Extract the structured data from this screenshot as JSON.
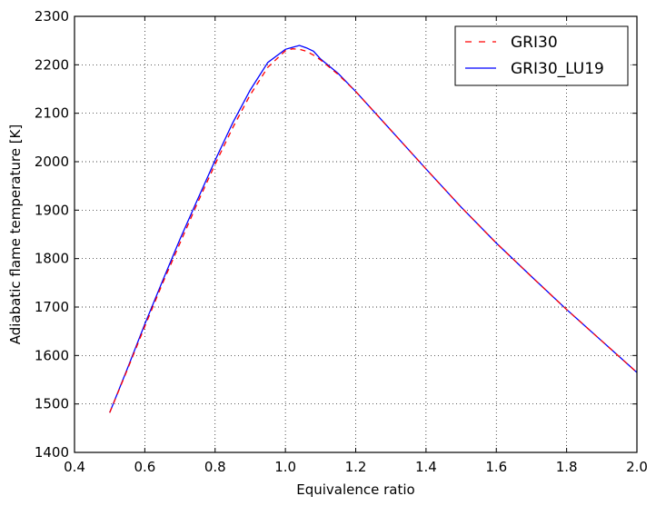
{
  "chart_data": {
    "type": "line",
    "xlabel": "Equivalence ratio",
    "ylabel": "Adiabatic flame temperature [K]",
    "xlim": [
      0.4,
      2.0
    ],
    "ylim": [
      1400,
      2300
    ],
    "xticks": [
      "0.4",
      "0.6",
      "0.8",
      "1.0",
      "1.2",
      "1.4",
      "1.6",
      "1.8",
      "2.0"
    ],
    "yticks": [
      "1400",
      "1500",
      "1600",
      "1700",
      "1800",
      "1900",
      "2000",
      "2100",
      "2200",
      "2300"
    ],
    "grid": true,
    "legend_position": "top-right",
    "series": [
      {
        "name": "GRI30",
        "color": "#ff0000",
        "style": "dashed",
        "x": [
          0.5,
          0.55,
          0.6,
          0.65,
          0.7,
          0.75,
          0.8,
          0.85,
          0.9,
          0.95,
          1.0,
          1.02,
          1.04,
          1.06,
          1.08,
          1.1,
          1.15,
          1.2,
          1.3,
          1.4,
          1.5,
          1.6,
          1.7,
          1.8,
          1.9,
          2.0
        ],
        "y": [
          1482,
          1570,
          1660,
          1748,
          1832,
          1915,
          1995,
          2070,
          2138,
          2195,
          2229,
          2233,
          2232,
          2228,
          2220,
          2210,
          2180,
          2145,
          2065,
          1985,
          1906,
          1832,
          1763,
          1695,
          1630,
          1565
        ]
      },
      {
        "name": "GRI30_LU19",
        "color": "#0000ff",
        "style": "solid",
        "x": [
          0.5,
          0.55,
          0.6,
          0.65,
          0.7,
          0.75,
          0.8,
          0.85,
          0.9,
          0.95,
          1.0,
          1.02,
          1.04,
          1.06,
          1.08,
          1.1,
          1.15,
          1.2,
          1.3,
          1.4,
          1.5,
          1.6,
          1.7,
          1.8,
          1.9,
          2.0
        ],
        "y": [
          1482,
          1572,
          1665,
          1753,
          1840,
          1922,
          2003,
          2080,
          2148,
          2205,
          2232,
          2236,
          2240,
          2235,
          2228,
          2212,
          2182,
          2145,
          2065,
          1985,
          1906,
          1832,
          1763,
          1695,
          1630,
          1565
        ]
      }
    ]
  }
}
